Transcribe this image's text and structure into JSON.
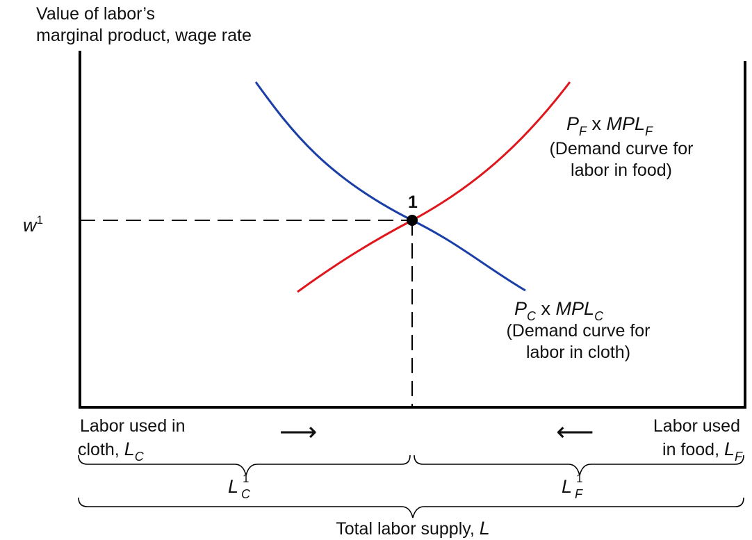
{
  "y_axis_label": {
    "line1": "Value of labor’s",
    "line2": "marginal product, wage rate"
  },
  "wage_label": {
    "symbol": "w",
    "superscript": "1"
  },
  "point_label": "1",
  "food_curve": {
    "term1": "P",
    "term1_sub": "F",
    "times": "x",
    "term2": "MPL",
    "term2_sub": "F",
    "desc_line1": "(Demand curve for",
    "desc_line2": "labor in food)"
  },
  "cloth_curve": {
    "term1": "P",
    "term1_sub": "C",
    "times": "x",
    "term2": "MPL",
    "term2_sub": "C",
    "desc_line1": "(Demand curve for",
    "desc_line2": "labor in cloth)"
  },
  "left_axis_label": {
    "line1": "Labor used in",
    "line2_text": "cloth, ",
    "line2_symbol": "L",
    "line2_sub": "C"
  },
  "right_axis_label": {
    "line1": "Labor used",
    "line2_text": "in food, ",
    "line2_symbol": "L",
    "line2_sub": "F"
  },
  "arrows": {
    "right": "⟶",
    "left": "⟵"
  },
  "brace_left_label": {
    "symbol": "L",
    "sup": "1",
    "sub": "C"
  },
  "brace_right_label": {
    "symbol": "L",
    "sup": "1",
    "sub": "F"
  },
  "total_label": {
    "text": "Total labor supply, ",
    "symbol": "L"
  },
  "colors": {
    "food_curve": "#e0161d",
    "cloth_curve": "#1a3fa6",
    "axis": "#000000"
  }
}
